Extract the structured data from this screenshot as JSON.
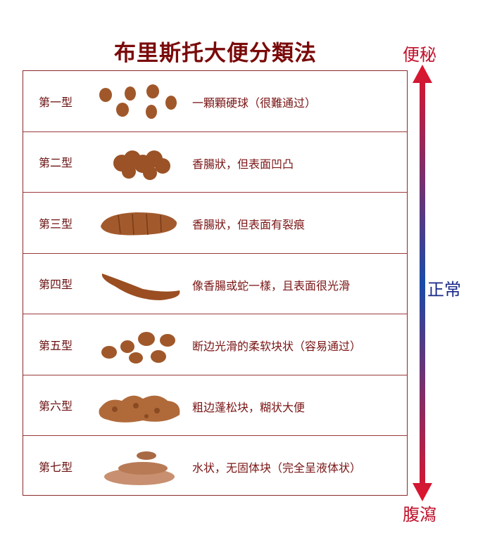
{
  "title": "布里斯托大便分類法",
  "scale": {
    "top": "便秘",
    "middle": "正常",
    "bottom": "腹瀉",
    "colors": {
      "end": "#e0142a",
      "middle": "#1a4aa8"
    }
  },
  "rows": [
    {
      "label": "第一型",
      "desc": "一顆顆硬球（很難通过）"
    },
    {
      "label": "第二型",
      "desc": "香腸狀，但表面凹凸"
    },
    {
      "label": "第三型",
      "desc": "香腸狀，但表面有裂痕"
    },
    {
      "label": "第四型",
      "desc": "像香腸或蛇一樣，且表面很光滑"
    },
    {
      "label": "第五型",
      "desc": "断边光滑的柔软块状（容易通过）"
    },
    {
      "label": "第六型",
      "desc": "粗边蓬松块，糊状大便"
    },
    {
      "label": "第七型",
      "desc": "水状，无固体块（完全呈液体状）"
    }
  ],
  "stool_color": "#a0582a"
}
